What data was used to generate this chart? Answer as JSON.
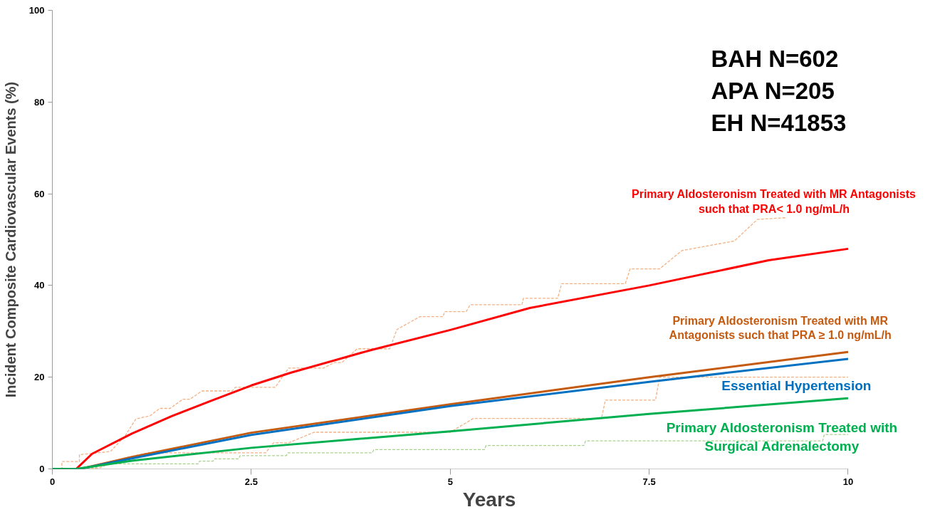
{
  "chart_data": {
    "type": "line",
    "xlabel": "Years",
    "ylabel": "Incident Composite Cardiovascular Events (%)",
    "xlim": [
      0,
      10
    ],
    "ylim": [
      0,
      100
    ],
    "xticks": [
      0,
      2.5,
      5,
      7.5,
      10
    ],
    "yticks": [
      0,
      20,
      40,
      60,
      80,
      100
    ],
    "grid": false,
    "annotations": [
      "BAH N=602",
      "APA  N=205",
      "EH   N=41853"
    ],
    "series": [
      {
        "color": "#f4b183",
        "line_style": "dashed",
        "x": [
          0,
          0.12,
          0.12,
          0.34,
          0.34,
          0.73,
          0.91,
          1.05,
          1.23,
          1.35,
          1.48,
          1.64,
          1.73,
          1.88,
          2.26,
          2.3,
          2.8,
          2.97,
          3.41,
          3.54,
          3.64,
          3.83,
          4.24,
          4.33,
          4.62,
          4.91,
          4.93,
          5.2,
          5.25,
          5.9,
          5.92,
          6.35,
          6.4,
          7.2,
          7.26,
          7.63,
          7.91,
          8.57,
          8.86,
          9.23
        ],
        "values": [
          0,
          0,
          1.6,
          1.6,
          3.1,
          3.8,
          7.1,
          10.9,
          11.6,
          13.2,
          13.2,
          15.2,
          15.2,
          17.0,
          17.0,
          17.8,
          17.8,
          22.0,
          22.0,
          23.2,
          23.2,
          26.2,
          26.2,
          30.4,
          33.2,
          33.2,
          34.3,
          34.3,
          35.8,
          35.8,
          37.2,
          37.2,
          40.4,
          40.4,
          43.6,
          43.6,
          47.6,
          49.7,
          54.4,
          54.8
        ]
      },
      {
        "color": "#f4b183",
        "line_style": "dashed",
        "x": [
          0,
          0.59,
          0.86,
          1.2,
          2.68,
          2.78,
          2.97,
          3.29,
          5.0,
          5.29,
          6.9,
          6.95,
          7.58,
          7.63,
          10
        ],
        "values": [
          0,
          0.2,
          2.2,
          3.5,
          3.5,
          5.7,
          5.7,
          8.0,
          8.0,
          11.0,
          11.0,
          15.0,
          15.0,
          20.0,
          20.0
        ]
      },
      {
        "color": "#a9d18e",
        "line_style": "dashed",
        "x": [
          0,
          0.53,
          0.6,
          1.83,
          1.85,
          2.02,
          2.04,
          2.34,
          2.36,
          2.94,
          2.96,
          4.02,
          4.04,
          5.43,
          5.45,
          6.68,
          6.7,
          9.68,
          9.7,
          10
        ],
        "values": [
          0,
          0,
          1.1,
          1.1,
          1.7,
          1.7,
          2.2,
          2.2,
          2.9,
          2.9,
          3.5,
          3.5,
          4.2,
          4.2,
          5.1,
          5.1,
          6.1,
          6.1,
          7.5,
          7.5
        ]
      },
      {
        "name": "Primary Aldosteronism Treated with MR Antagonists such that PRA< 1.0 ng/mL/h",
        "color": "#ff0000",
        "line_style": "solid",
        "x": [
          0,
          0.3,
          0.5,
          1,
          1.5,
          2,
          2.5,
          3,
          4,
          5,
          6,
          7.5,
          9,
          10
        ],
        "values": [
          0,
          0,
          3.3,
          7.7,
          11.5,
          14.9,
          18.2,
          21.0,
          25.9,
          30.3,
          35.1,
          40.0,
          45.5,
          48.0
        ]
      },
      {
        "name": "Primary Aldosteronism Treated with MR Antagonists such that PRA ≥ 1.0 ng/mL/h",
        "color": "#c55a11",
        "line_style": "solid",
        "x": [
          0,
          0.35,
          1,
          2.5,
          5,
          7.5,
          10
        ],
        "values": [
          0,
          0,
          2.6,
          7.9,
          14.1,
          20.0,
          25.5
        ]
      },
      {
        "name": "Essential Hypertension",
        "color": "#0070c0",
        "line_style": "solid",
        "x": [
          0,
          0.35,
          1,
          2.5,
          5,
          7.5,
          10
        ],
        "values": [
          0,
          0,
          2.3,
          7.4,
          13.7,
          19.0,
          24.0
        ]
      },
      {
        "name": "Primary Aldosteronism Treated with Surgical Adrenalectomy",
        "color": "#00b050",
        "line_style": "solid",
        "x": [
          0,
          0.3,
          1,
          2.5,
          5,
          7.5,
          10
        ],
        "values": [
          0,
          0,
          1.8,
          4.6,
          8.2,
          12.0,
          15.4
        ]
      }
    ]
  }
}
